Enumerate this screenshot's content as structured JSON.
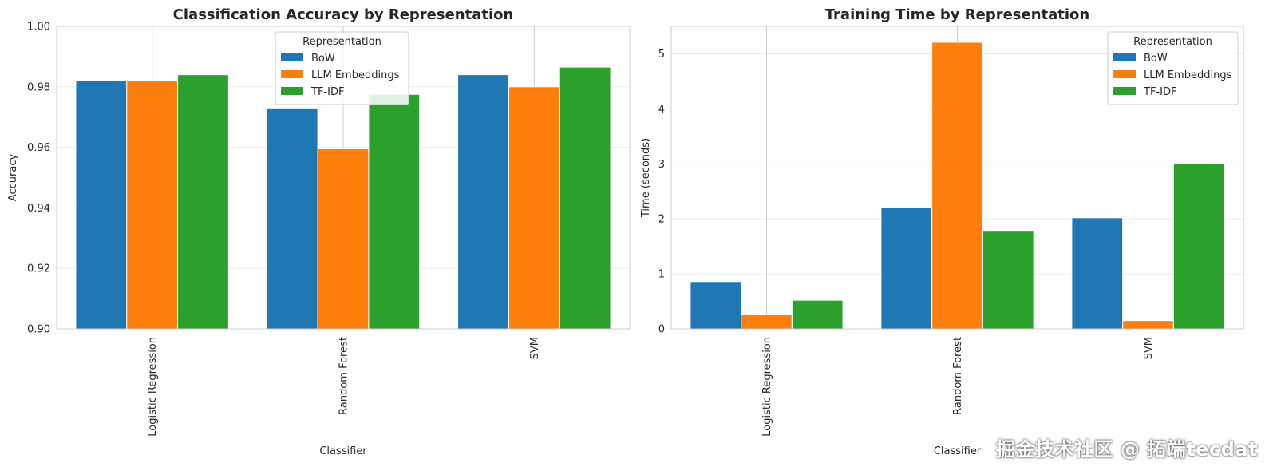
{
  "chart_data": [
    {
      "type": "bar",
      "title": "Classification Accuracy by Representation",
      "xlabel": "Classifier",
      "ylabel": "Accuracy",
      "categories": [
        "Logistic Regression",
        "Random Forest",
        "SVM"
      ],
      "series": [
        {
          "name": "BoW",
          "color": "#1f77b4",
          "values": [
            0.982,
            0.973,
            0.984
          ]
        },
        {
          "name": "LLM Embeddings",
          "color": "#ff7f0e",
          "values": [
            0.982,
            0.9595,
            0.98
          ]
        },
        {
          "name": "TF-IDF",
          "color": "#2ca02c",
          "values": [
            0.984,
            0.9775,
            0.9865
          ]
        }
      ],
      "ylim": [
        0.9,
        1.0
      ],
      "yticks": [
        "0.90",
        "0.92",
        "0.94",
        "0.96",
        "0.98",
        "1.00"
      ],
      "grid": true,
      "legend_title": "Representation",
      "legend_position": "top-center"
    },
    {
      "type": "bar",
      "title": "Training Time by Representation",
      "xlabel": "Classifier",
      "ylabel": "Time (seconds)",
      "categories": [
        "Logistic Regression",
        "Random Forest",
        "SVM"
      ],
      "series": [
        {
          "name": "BoW",
          "color": "#1f77b4",
          "values": [
            0.86,
            2.2,
            2.02
          ]
        },
        {
          "name": "LLM Embeddings",
          "color": "#ff7f0e",
          "values": [
            0.26,
            5.21,
            0.15
          ]
        },
        {
          "name": "TF-IDF",
          "color": "#2ca02c",
          "values": [
            0.52,
            1.79,
            3.0
          ]
        }
      ],
      "ylim": [
        0,
        5.5
      ],
      "yticks": [
        "0",
        "1",
        "2",
        "3",
        "4",
        "5"
      ],
      "grid": true,
      "legend_title": "Representation",
      "legend_position": "top-right"
    }
  ],
  "watermark": "掘金技术社区 @ 拓端tecdat"
}
